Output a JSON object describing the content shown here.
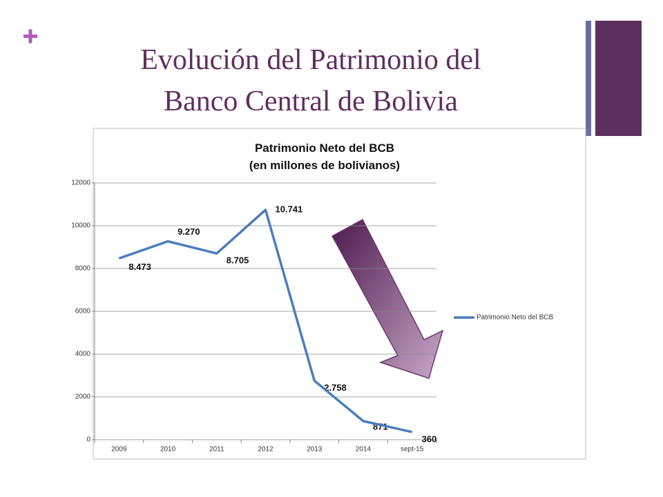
{
  "slide": {
    "title_lines": [
      "Evolución del Patrimonio del",
      "Banco Central de Bolivia"
    ]
  },
  "chart_data": {
    "type": "line",
    "title": "Patrimonio Neto del BCB",
    "subtitle": "(en millones de bolivianos)",
    "categories": [
      "2009",
      "2010",
      "2011",
      "2012",
      "2013",
      "2014",
      "sept-15"
    ],
    "series": [
      {
        "name": "Patrimonio Neto del BCB",
        "color": "#4a7ebb",
        "values": [
          8473,
          9270,
          8705,
          10741,
          2758,
          871,
          360
        ],
        "value_labels": [
          "8.473",
          "9.270",
          "8.705",
          "10.741",
          "2.758",
          "871",
          "360"
        ]
      }
    ],
    "ylim": [
      0,
      12000
    ],
    "yticks": [
      0,
      2000,
      4000,
      6000,
      8000,
      10000,
      12000
    ],
    "grid": true,
    "legend": "right"
  }
}
